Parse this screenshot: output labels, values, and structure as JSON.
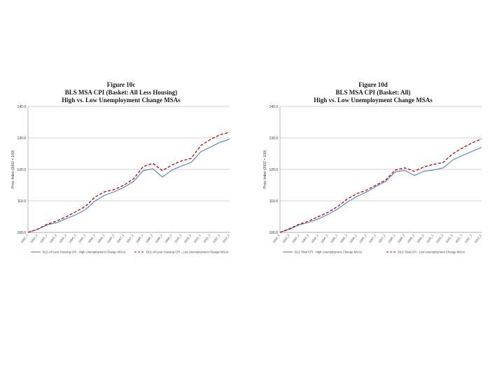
{
  "charts": [
    {
      "title_lines": [
        "Figure 10c",
        "BLS MSA CPI (Basket: All Less Housing)",
        "High vs. Low Unemployment Change MSAs"
      ]
    },
    {
      "title_lines": [
        "Figure 10d",
        "BLS MSA CPI (Basket: All)",
        "High vs. Low Unemployment Change MSAs"
      ]
    }
  ],
  "chart_data": [
    {
      "type": "line",
      "title": "Figure 10c",
      "subtitle": [
        "BLS MSA CPI (Basket: All Less Housing)",
        "High vs. Low Unemployment Change MSAs"
      ],
      "xlabel": "",
      "ylabel": "Price Index (2002 = 100)",
      "ylim": [
        100,
        140
      ],
      "yticks": [
        "100.0",
        "110.0",
        "120.0",
        "130.0",
        "140.0"
      ],
      "grid": true,
      "legend_position": "bottom",
      "categories": [
        "2002_1",
        "2002_2",
        "2003_1",
        "2003_2",
        "2004_1",
        "2004_2",
        "2005_1",
        "2005_2",
        "2006_1",
        "2006_2",
        "2007_1",
        "2007_2",
        "2008_1",
        "2008_2",
        "2009_1",
        "2009_2",
        "2010_1",
        "2010_2",
        "2011_1",
        "2011_2",
        "2012_1",
        "2012_2"
      ],
      "series": [
        {
          "name": "BLS All Less Housing CPI - High Unemployment Change MSAs",
          "color": "#4f81bd",
          "dash": "solid",
          "values": [
            100.0,
            101.0,
            102.4,
            103.1,
            104.4,
            105.6,
            107.3,
            110.0,
            111.8,
            112.9,
            114.3,
            116.2,
            119.6,
            120.2,
            117.6,
            119.8,
            121.1,
            122.2,
            125.6,
            127.1,
            128.6,
            129.6
          ]
        },
        {
          "name": "BLS All Less Housing CPI - Low Unemployment Change MSAs",
          "color": "#c00000",
          "dash": "dashed",
          "values": [
            100.0,
            101.0,
            102.6,
            103.6,
            105.0,
            106.6,
            108.3,
            111.3,
            112.9,
            113.6,
            115.0,
            117.0,
            120.9,
            121.9,
            119.6,
            121.4,
            122.7,
            123.5,
            127.6,
            129.5,
            131.0,
            131.8
          ]
        }
      ]
    },
    {
      "type": "line",
      "title": "Figure 10d",
      "subtitle": [
        "BLS MSA CPI (Basket: All)",
        "High vs. Low Unemployment Change MSAs"
      ],
      "xlabel": "",
      "ylabel": "Price Index (2002 = 100)",
      "ylim": [
        100,
        140
      ],
      "yticks": [
        "100.0",
        "110.0",
        "120.0",
        "130.0",
        "140.0"
      ],
      "grid": true,
      "legend_position": "bottom",
      "categories": [
        "2002_1",
        "2002_2",
        "2003_1",
        "2003_2",
        "2004_1",
        "2004_2",
        "2005_1",
        "2005_2",
        "2006_1",
        "2006_2",
        "2007_1",
        "2007_2",
        "2008_1",
        "2008_2",
        "2009_1",
        "2009_2",
        "2010_1",
        "2010_2",
        "2011_1",
        "2011_2",
        "2012_1",
        "2012_2"
      ],
      "series": [
        {
          "name": "BLS Total CPI - High Unemployment Change MSAs",
          "color": "#4f81bd",
          "dash": "solid",
          "values": [
            100.0,
            101.0,
            102.4,
            103.2,
            104.3,
            105.7,
            107.4,
            109.6,
            111.4,
            112.8,
            114.6,
            116.2,
            119.2,
            119.7,
            118.1,
            119.4,
            119.8,
            120.5,
            123.0,
            124.4,
            125.7,
            127.0
          ]
        },
        {
          "name": "BLS Total CPI - Low Unemployment Change MSAs",
          "color": "#c00000",
          "dash": "dashed",
          "values": [
            100.0,
            101.2,
            102.6,
            103.6,
            105.0,
            106.4,
            108.2,
            110.6,
            112.3,
            113.4,
            115.0,
            116.6,
            119.8,
            120.5,
            119.4,
            120.8,
            121.6,
            122.2,
            125.0,
            126.8,
            128.4,
            129.7
          ]
        }
      ]
    }
  ]
}
